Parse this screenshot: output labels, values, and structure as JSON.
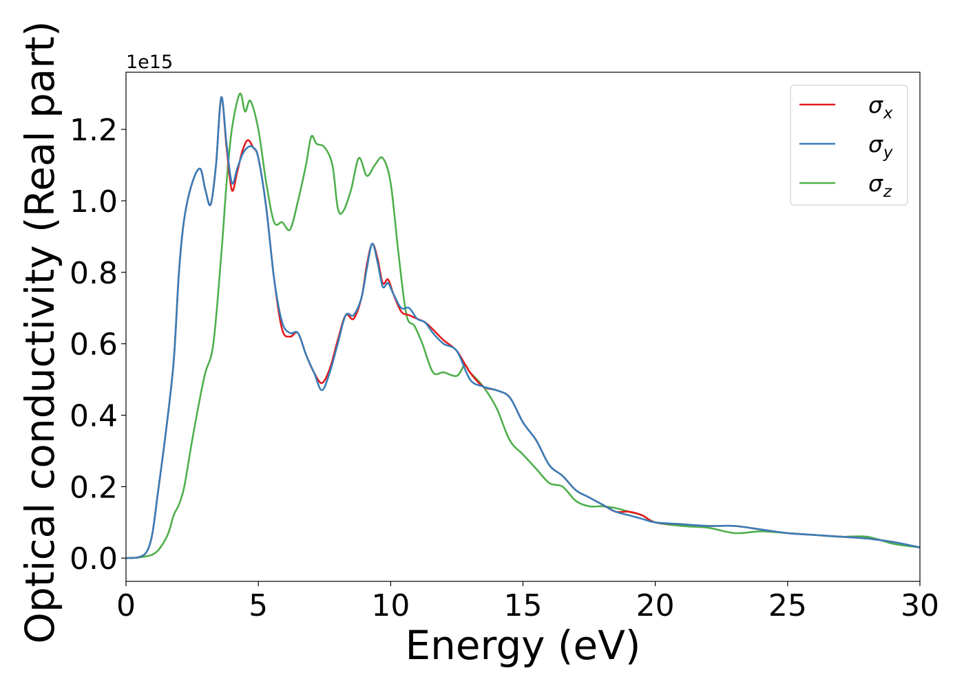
{
  "chart_data": {
    "type": "line",
    "title": "",
    "xlabel": "Energy (eV)",
    "ylabel": "Optical conductivity (Real part)",
    "y_offset_label": "1e15",
    "xlim": [
      0,
      30
    ],
    "ylim": [
      -0.065,
      1.36
    ],
    "x_ticks": [
      0,
      5,
      10,
      15,
      20,
      25,
      30
    ],
    "x_tick_labels": [
      "0",
      "5",
      "10",
      "15",
      "20",
      "25",
      "30"
    ],
    "y_ticks": [
      0.0,
      0.2,
      0.4,
      0.6,
      0.8,
      1.0,
      1.2
    ],
    "y_tick_labels": [
      "0.0",
      "0.2",
      "0.4",
      "0.6",
      "0.8",
      "1.0",
      "1.2"
    ],
    "grid": false,
    "legend_position": "top-right",
    "series": [
      {
        "name": "σx",
        "symbol": "σ",
        "subscript": "x",
        "color": "#e41a1c",
        "x": [
          0,
          0.5,
          0.8,
          1.0,
          1.2,
          1.5,
          1.8,
          2.0,
          2.2,
          2.5,
          2.8,
          3.0,
          3.2,
          3.4,
          3.6,
          3.8,
          4.0,
          4.2,
          4.4,
          4.6,
          4.8,
          5.0,
          5.3,
          5.6,
          5.9,
          6.2,
          6.5,
          6.8,
          7.1,
          7.4,
          7.7,
          8.0,
          8.3,
          8.6,
          8.9,
          9.1,
          9.3,
          9.5,
          9.7,
          9.9,
          10.1,
          10.4,
          10.7,
          11.0,
          11.3,
          11.6,
          12.0,
          12.5,
          13.0,
          13.5,
          14.0,
          14.5,
          15.0,
          15.5,
          16.0,
          16.5,
          17.0,
          17.5,
          18.0,
          18.5,
          19.0,
          19.5,
          20.0,
          21.0,
          22.0,
          23.0,
          24.0,
          25.0,
          26.0,
          27.0,
          28.0,
          29.0,
          30.0
        ],
        "values": [
          0,
          0.003,
          0.02,
          0.07,
          0.18,
          0.35,
          0.55,
          0.8,
          0.95,
          1.05,
          1.09,
          1.03,
          0.99,
          1.1,
          1.29,
          1.15,
          1.03,
          1.08,
          1.14,
          1.17,
          1.15,
          1.12,
          0.98,
          0.78,
          0.64,
          0.62,
          0.63,
          0.57,
          0.52,
          0.49,
          0.53,
          0.61,
          0.68,
          0.67,
          0.73,
          0.82,
          0.88,
          0.84,
          0.77,
          0.78,
          0.74,
          0.69,
          0.68,
          0.67,
          0.66,
          0.64,
          0.61,
          0.58,
          0.52,
          0.48,
          0.47,
          0.45,
          0.38,
          0.33,
          0.26,
          0.23,
          0.19,
          0.17,
          0.15,
          0.13,
          0.13,
          0.12,
          0.1,
          0.095,
          0.09,
          0.09,
          0.08,
          0.07,
          0.065,
          0.06,
          0.055,
          0.045,
          0.03
        ]
      },
      {
        "name": "σy",
        "symbol": "σ",
        "subscript": "y",
        "color": "#377eb8",
        "x": [
          0,
          0.5,
          0.8,
          1.0,
          1.2,
          1.5,
          1.8,
          2.0,
          2.2,
          2.5,
          2.8,
          3.0,
          3.2,
          3.4,
          3.6,
          3.8,
          4.0,
          4.2,
          4.4,
          4.6,
          4.8,
          5.0,
          5.3,
          5.6,
          5.9,
          6.2,
          6.5,
          6.8,
          7.1,
          7.4,
          7.7,
          8.0,
          8.3,
          8.6,
          8.9,
          9.1,
          9.3,
          9.5,
          9.7,
          9.9,
          10.1,
          10.4,
          10.7,
          11.0,
          11.3,
          11.6,
          12.0,
          12.5,
          13.0,
          13.5,
          14.0,
          14.5,
          15.0,
          15.5,
          16.0,
          16.5,
          17.0,
          17.5,
          18.0,
          18.5,
          19.0,
          19.5,
          20.0,
          21.0,
          22.0,
          23.0,
          24.0,
          25.0,
          26.0,
          27.0,
          28.0,
          29.0,
          30.0
        ],
        "values": [
          0,
          0.003,
          0.02,
          0.07,
          0.18,
          0.35,
          0.55,
          0.8,
          0.95,
          1.05,
          1.09,
          1.03,
          0.99,
          1.1,
          1.29,
          1.16,
          1.05,
          1.09,
          1.13,
          1.15,
          1.15,
          1.12,
          0.98,
          0.78,
          0.66,
          0.63,
          0.63,
          0.57,
          0.52,
          0.47,
          0.52,
          0.6,
          0.68,
          0.68,
          0.73,
          0.81,
          0.88,
          0.83,
          0.76,
          0.77,
          0.74,
          0.7,
          0.7,
          0.67,
          0.66,
          0.63,
          0.6,
          0.58,
          0.5,
          0.48,
          0.47,
          0.45,
          0.38,
          0.33,
          0.26,
          0.23,
          0.19,
          0.17,
          0.15,
          0.13,
          0.12,
          0.11,
          0.1,
          0.095,
          0.09,
          0.09,
          0.08,
          0.07,
          0.065,
          0.06,
          0.055,
          0.045,
          0.03
        ]
      },
      {
        "name": "σz",
        "symbol": "σ",
        "subscript": "z",
        "color": "#4daf4a",
        "x": [
          0,
          0.5,
          1.0,
          1.3,
          1.6,
          1.8,
          2.0,
          2.2,
          2.5,
          2.8,
          3.0,
          3.3,
          3.6,
          3.8,
          4.0,
          4.3,
          4.5,
          4.7,
          5.0,
          5.3,
          5.6,
          5.9,
          6.2,
          6.5,
          6.8,
          7.0,
          7.2,
          7.5,
          7.8,
          8.0,
          8.2,
          8.5,
          8.8,
          9.1,
          9.4,
          9.7,
          10.0,
          10.3,
          10.6,
          10.9,
          11.2,
          11.6,
          12.0,
          12.5,
          12.8,
          13.0,
          13.5,
          14.0,
          14.5,
          15.0,
          15.5,
          16.0,
          16.5,
          17.0,
          17.5,
          18.0,
          18.5,
          19.0,
          19.5,
          20.0,
          21.0,
          22.0,
          23.0,
          24.0,
          25.0,
          26.0,
          27.0,
          28.0,
          29.0,
          30.0
        ],
        "values": [
          0,
          0.002,
          0.01,
          0.03,
          0.07,
          0.12,
          0.15,
          0.2,
          0.33,
          0.45,
          0.52,
          0.6,
          0.85,
          1.05,
          1.2,
          1.3,
          1.25,
          1.28,
          1.2,
          1.05,
          0.94,
          0.94,
          0.92,
          1.0,
          1.1,
          1.18,
          1.16,
          1.15,
          1.1,
          0.98,
          0.97,
          1.03,
          1.12,
          1.07,
          1.1,
          1.12,
          1.05,
          0.85,
          0.68,
          0.65,
          0.6,
          0.52,
          0.52,
          0.51,
          0.54,
          0.52,
          0.48,
          0.42,
          0.33,
          0.29,
          0.25,
          0.21,
          0.2,
          0.16,
          0.145,
          0.145,
          0.14,
          0.13,
          0.12,
          0.1,
          0.09,
          0.085,
          0.07,
          0.075,
          0.07,
          0.065,
          0.06,
          0.06,
          0.04,
          0.03
        ]
      }
    ]
  }
}
